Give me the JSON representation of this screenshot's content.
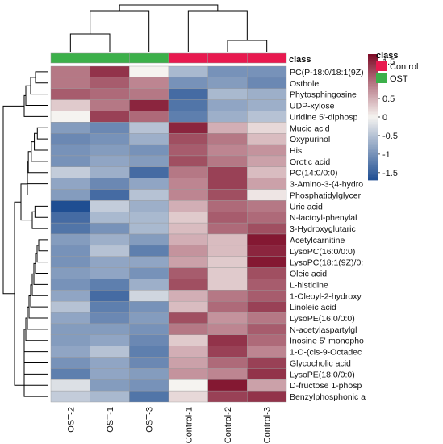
{
  "chart_data": {
    "type": "heatmap",
    "colors": {
      "low": "#1f4e92",
      "mid": "#f5f3f0",
      "high": "#7d0a26",
      "class_Control": "#e8194f",
      "class_OST": "#3cb04a",
      "dendrogram": "#000000"
    },
    "columns": [
      "OST-2",
      "OST-1",
      "OST-3",
      "Control-1",
      "Control-2",
      "Control-3"
    ],
    "column_classes": [
      "OST",
      "OST",
      "OST",
      "Control",
      "Control",
      "Control"
    ],
    "class_bar_label": "class",
    "rows": [
      "PC(P-18:0/18:1(9Z)",
      "Osthole",
      "Phytosphingosine",
      "UDP-xylose",
      "Uridine 5'-diphosp",
      "Mucic acid",
      "Oxypurinol",
      "His",
      "Orotic acid",
      "PC(14:0/0:0)",
      "3-Amino-3-(4-hydro",
      "Phosphatidylglycer",
      "Uric acid",
      "N-lactoyl-phenylal",
      "3-Hydroxyglutaric",
      "Acetylcarnitine",
      "LysoPC(16:0/0:0)",
      "LysoPC(18:1(9Z)/0:",
      "Oleic acid",
      "L-histidine",
      "1-Oleoyl-2-hydroxy",
      "Linoleic acid",
      "LysoPE(16:0/0:0)",
      "N-acetylaspartylgl",
      "Inosine 5'-monopho",
      "1-O-(cis-9-Octadec",
      "Glycocholic acid",
      "LysoPE(18:0/0:0)",
      "D-fructose 1-phosp",
      "Benzylphosphonic a"
    ],
    "values": [
      [
        0.9,
        1.4,
        0.0,
        -0.6,
        -1.0,
        -1.0
      ],
      [
        0.9,
        1.1,
        0.8,
        -1.0,
        -0.9,
        -1.1
      ],
      [
        1.1,
        1.0,
        0.9,
        -1.4,
        -0.6,
        -0.7
      ],
      [
        0.3,
        0.9,
        1.5,
        -1.3,
        -0.8,
        -0.7
      ],
      [
        0.0,
        1.3,
        1.0,
        -1.2,
        -0.7,
        -0.5
      ],
      [
        -0.9,
        -1.1,
        -0.5,
        1.5,
        0.5,
        0.2
      ],
      [
        -1.1,
        -1.0,
        -0.7,
        1.2,
        0.9,
        0.4
      ],
      [
        -1.0,
        -0.9,
        -1.0,
        1.1,
        0.8,
        0.7
      ],
      [
        -1.0,
        -0.8,
        -0.9,
        1.2,
        0.9,
        0.6
      ],
      [
        -0.4,
        -0.7,
        -1.4,
        0.9,
        1.3,
        0.4
      ],
      [
        -0.8,
        -1.1,
        -0.8,
        0.8,
        1.3,
        0.6
      ],
      [
        -0.9,
        -1.4,
        -0.5,
        0.8,
        1.2,
        0.1
      ],
      [
        -1.7,
        -0.4,
        -0.7,
        0.5,
        1.0,
        0.9
      ],
      [
        -1.4,
        -0.6,
        -0.6,
        0.3,
        1.1,
        1.0
      ],
      [
        -1.3,
        -1.0,
        -0.6,
        0.4,
        1.0,
        1.2
      ],
      [
        -0.9,
        -0.7,
        -0.9,
        0.5,
        0.4,
        1.6
      ],
      [
        -1.0,
        -0.5,
        -1.2,
        0.7,
        0.4,
        1.5
      ],
      [
        -1.0,
        -0.8,
        -0.8,
        0.6,
        0.3,
        1.6
      ],
      [
        -0.9,
        -0.8,
        -1.0,
        1.1,
        0.3,
        1.2
      ],
      [
        -1.0,
        -1.2,
        -0.7,
        1.2,
        0.3,
        1.1
      ],
      [
        -0.8,
        -1.4,
        -0.3,
        0.5,
        0.9,
        1.1
      ],
      [
        -0.5,
        -1.2,
        -1.0,
        0.4,
        1.0,
        1.3
      ],
      [
        -0.8,
        -1.1,
        -0.9,
        1.2,
        0.7,
        0.9
      ],
      [
        -0.9,
        -0.9,
        -1.0,
        0.9,
        0.8,
        1.1
      ],
      [
        -0.9,
        -0.8,
        -1.1,
        0.3,
        1.4,
        1.0
      ],
      [
        -0.8,
        -0.5,
        -1.2,
        0.5,
        1.3,
        0.8
      ],
      [
        -1.0,
        -0.8,
        -1.1,
        0.6,
        1.0,
        1.3
      ],
      [
        -1.2,
        -0.8,
        -0.9,
        0.7,
        0.8,
        1.4
      ],
      [
        -0.2,
        -0.9,
        -1.0,
        0.0,
        1.6,
        0.6
      ],
      [
        -0.4,
        -0.6,
        -1.3,
        0.2,
        1.3,
        1.4
      ]
    ],
    "colorbar": {
      "ticks": [
        1.5,
        1,
        0.5,
        0,
        -0.5,
        -1,
        -1.5
      ],
      "labels": [
        "1.5",
        "1",
        "0.5",
        "0",
        "-0.5",
        "-1",
        "-1.5"
      ],
      "range": [
        -1.7,
        1.7
      ]
    },
    "legend": {
      "title": "class",
      "entries": [
        {
          "name": "Control",
          "color": "#e8194f"
        },
        {
          "name": "OST",
          "color": "#3cb04a"
        }
      ]
    }
  }
}
